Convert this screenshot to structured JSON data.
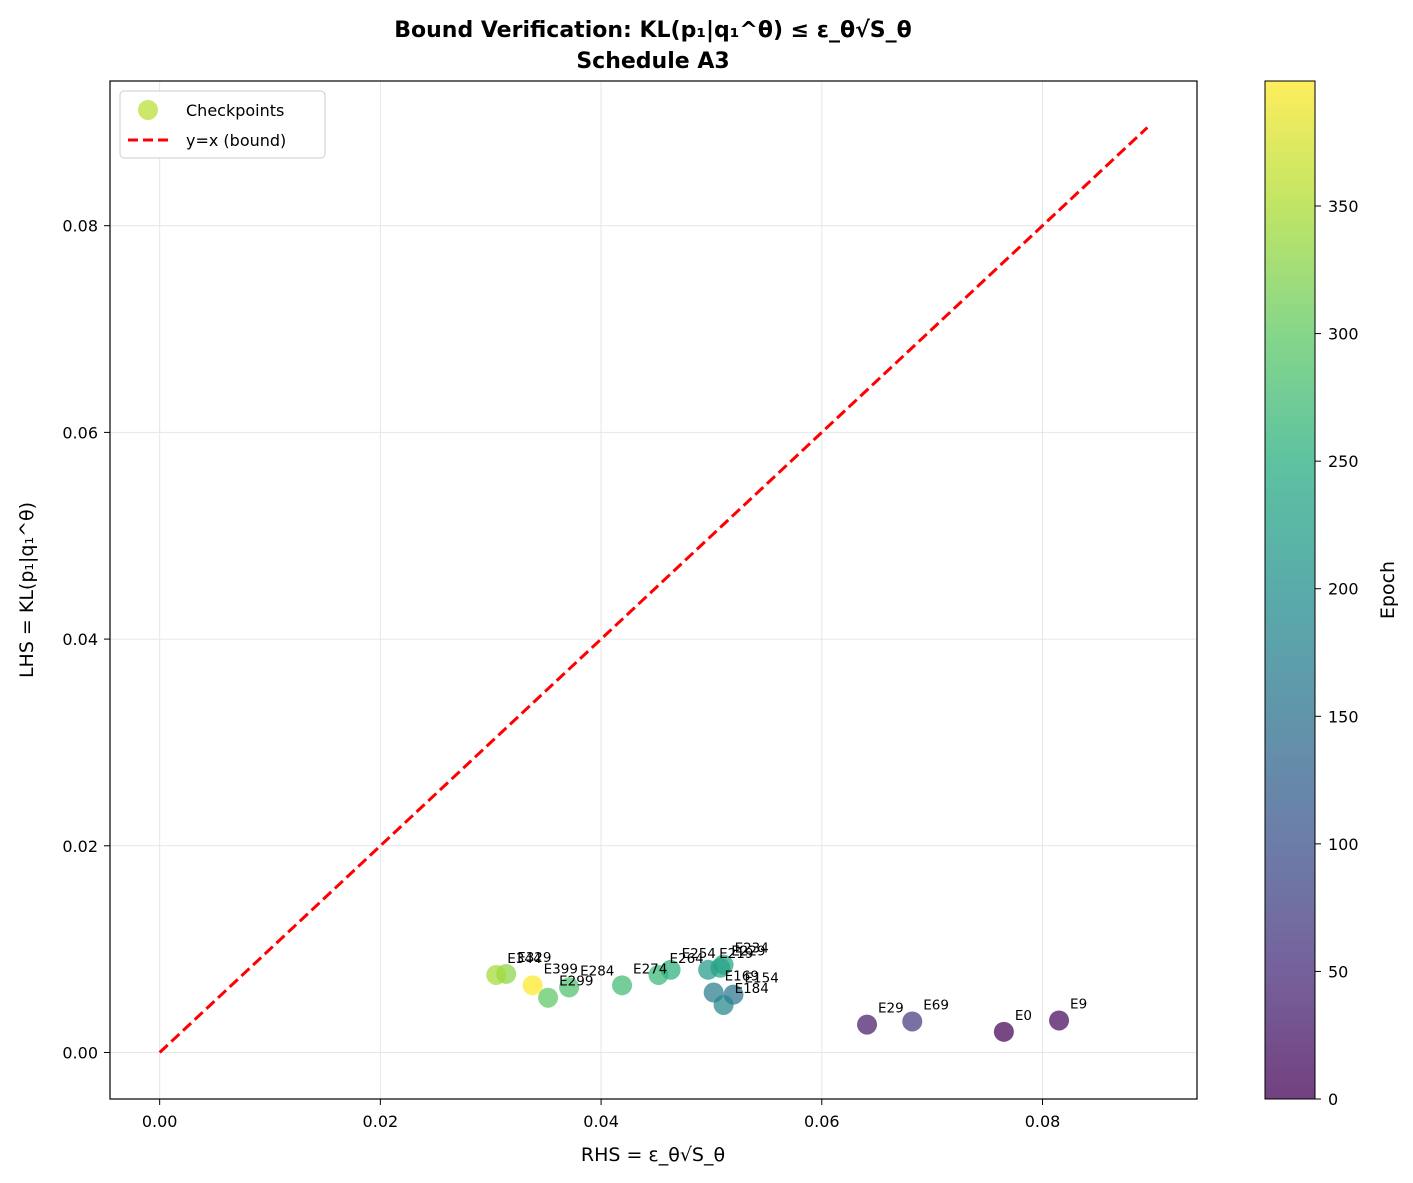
{
  "chart_data": {
    "type": "scatter",
    "title": "Bound Verification: KL(p₁|q₁^θ) ≤ ε_θ√S_θ",
    "subtitle": "Schedule A3",
    "xlabel": "RHS = ε_θ√S_θ",
    "ylabel": "LHS = KL(p₁|q₁^θ)",
    "xlim": [
      -0.0045,
      0.094
    ],
    "ylim": [
      -0.0045,
      0.094
    ],
    "x_ticks": [
      0.0,
      0.02,
      0.04,
      0.06,
      0.08
    ],
    "x_tick_labels": [
      "0.00",
      "0.02",
      "0.04",
      "0.06",
      "0.08"
    ],
    "y_ticks": [
      0.0,
      0.02,
      0.04,
      0.06,
      0.08
    ],
    "y_tick_labels": [
      "0.00",
      "0.02",
      "0.04",
      "0.06",
      "0.08"
    ],
    "grid": true,
    "legend_position": "top-left",
    "legend": [
      {
        "label": "Checkpoints",
        "kind": "marker",
        "color": "#b5de2b"
      },
      {
        "label": "y=x (bound)",
        "kind": "dashed-line",
        "color": "#ff0000"
      }
    ],
    "colorbar": {
      "label": "Epoch",
      "colormap": "viridis",
      "range": [
        0,
        399
      ],
      "ticks": [
        0,
        50,
        100,
        150,
        200,
        250,
        300,
        350
      ],
      "tick_labels": [
        "0",
        "50",
        "100",
        "150",
        "200",
        "250",
        "300",
        "350"
      ]
    },
    "reference_line": {
      "label": "y=x (bound)",
      "x": [
        0.0,
        0.0895
      ],
      "y": [
        0.0,
        0.0895
      ],
      "color": "#ff0000",
      "style": "dashed"
    },
    "series": [
      {
        "name": "Checkpoints",
        "points": [
          {
            "label": "E0",
            "epoch": 0,
            "x": 0.0765,
            "y": 0.002
          },
          {
            "label": "E9",
            "epoch": 9,
            "x": 0.0815,
            "y": 0.0031
          },
          {
            "label": "E29",
            "epoch": 29,
            "x": 0.0641,
            "y": 0.0027
          },
          {
            "label": "E69",
            "epoch": 69,
            "x": 0.0682,
            "y": 0.003
          },
          {
            "label": "E154",
            "epoch": 154,
            "x": 0.052,
            "y": 0.0056
          },
          {
            "label": "E169",
            "epoch": 169,
            "x": 0.0502,
            "y": 0.0058
          },
          {
            "label": "E184",
            "epoch": 184,
            "x": 0.0511,
            "y": 0.0046
          },
          {
            "label": "E219",
            "epoch": 219,
            "x": 0.0497,
            "y": 0.008
          },
          {
            "label": "E229",
            "epoch": 229,
            "x": 0.0508,
            "y": 0.0082
          },
          {
            "label": "E234",
            "epoch": 234,
            "x": 0.0511,
            "y": 0.0085
          },
          {
            "label": "E254",
            "epoch": 254,
            "x": 0.0463,
            "y": 0.008
          },
          {
            "label": "E264",
            "epoch": 264,
            "x": 0.0452,
            "y": 0.0075
          },
          {
            "label": "E274",
            "epoch": 274,
            "x": 0.0419,
            "y": 0.0065
          },
          {
            "label": "E284",
            "epoch": 284,
            "x": 0.0371,
            "y": 0.0063
          },
          {
            "label": "E299",
            "epoch": 299,
            "x": 0.0352,
            "y": 0.0053
          },
          {
            "label": "E329",
            "epoch": 329,
            "x": 0.0314,
            "y": 0.0076
          },
          {
            "label": "E344",
            "epoch": 344,
            "x": 0.0305,
            "y": 0.0075
          },
          {
            "label": "E399",
            "epoch": 399,
            "x": 0.0338,
            "y": 0.0065
          }
        ]
      }
    ]
  }
}
